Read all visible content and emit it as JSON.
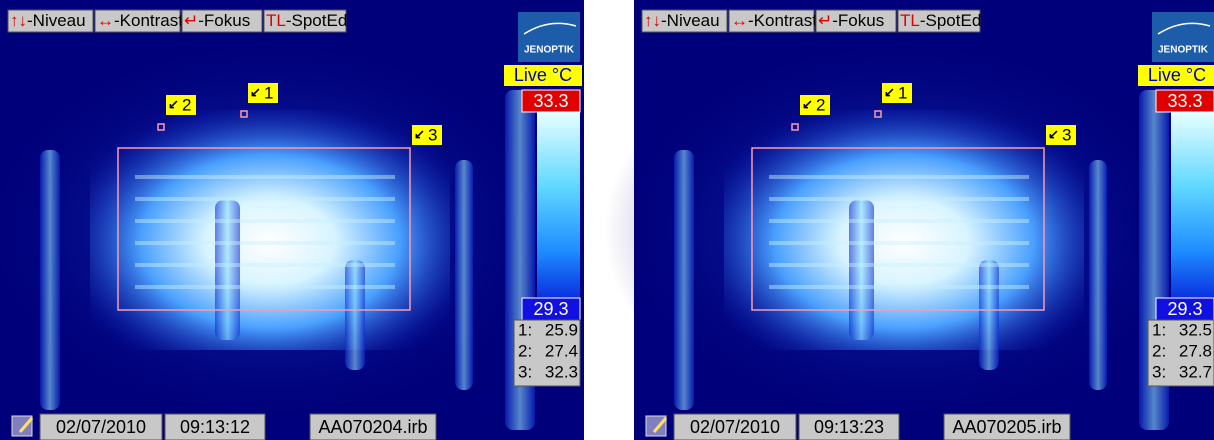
{
  "panels": [
    {
      "toolbar": [
        {
          "key": "↑↓",
          "label": "-Niveau"
        },
        {
          "key": "↔",
          "label": "-Kontrast"
        },
        {
          "key": "↵",
          "label": "-Fokus"
        },
        {
          "key": "TL",
          "label": "-SpotEd"
        }
      ],
      "brand": "JENOPTIK",
      "mode": "Live °C",
      "max": "33.3",
      "min": "29.3",
      "spots": [
        {
          "marker": "1",
          "reading": "1:",
          "value": "25.9"
        },
        {
          "marker": "2",
          "reading": "2:",
          "value": "27.4"
        },
        {
          "marker": "3",
          "reading": "3:",
          "value": "32.3"
        }
      ],
      "date": "02/07/2010",
      "time": "09:13:12",
      "file": "AA070204.irb"
    },
    {
      "toolbar": [
        {
          "key": "↑↓",
          "label": "-Niveau"
        },
        {
          "key": "↔",
          "label": "-Kontrast"
        },
        {
          "key": "↵",
          "label": "-Fokus"
        },
        {
          "key": "TL",
          "label": "-SpotEd"
        }
      ],
      "brand": "JENOPTIK",
      "mode": "Live °C",
      "max": "33.3",
      "min": "29.3",
      "spots": [
        {
          "marker": "1",
          "reading": "1:",
          "value": "32.5"
        },
        {
          "marker": "2",
          "reading": "2:",
          "value": "27.8"
        },
        {
          "marker": "3",
          "reading": "3:",
          "value": "32.7"
        }
      ],
      "date": "02/07/2010",
      "time": "09:13:23",
      "file": "AA070205.irb"
    }
  ]
}
